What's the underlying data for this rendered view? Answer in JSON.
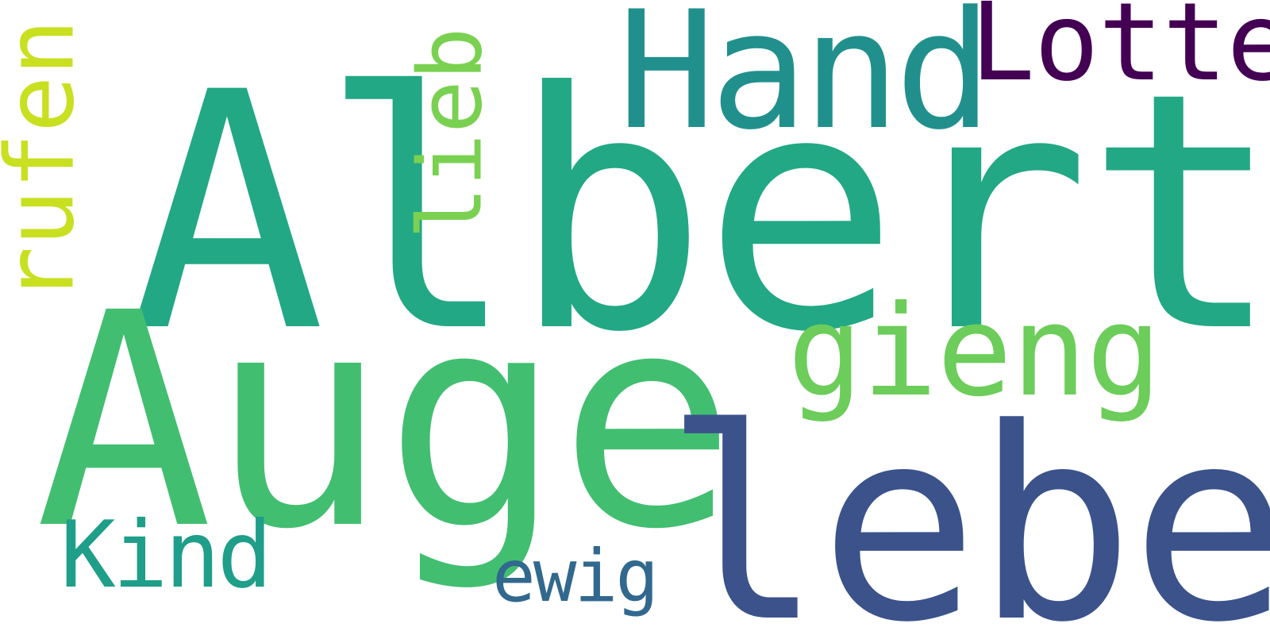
{
  "words": {
    "albert": {
      "text": "Albert",
      "color": "#22a884"
    },
    "auge": {
      "text": "Auge",
      "color": "#42be71"
    },
    "leben": {
      "text": "leben",
      "color": "#3b528b"
    },
    "hand": {
      "text": "Hand",
      "color": "#21908d"
    },
    "lotte": {
      "text": "Lotte",
      "color": "#440154"
    },
    "gieng": {
      "text": "gieng",
      "color": "#6ccd5a"
    },
    "rufen": {
      "text": "rufen",
      "color": "#c8e020"
    },
    "lieb": {
      "text": "lieb",
      "color": "#7ad151"
    },
    "kind": {
      "text": "Kind",
      "color": "#1f9e89"
    },
    "ewig": {
      "text": "ewig",
      "color": "#31688e"
    }
  }
}
